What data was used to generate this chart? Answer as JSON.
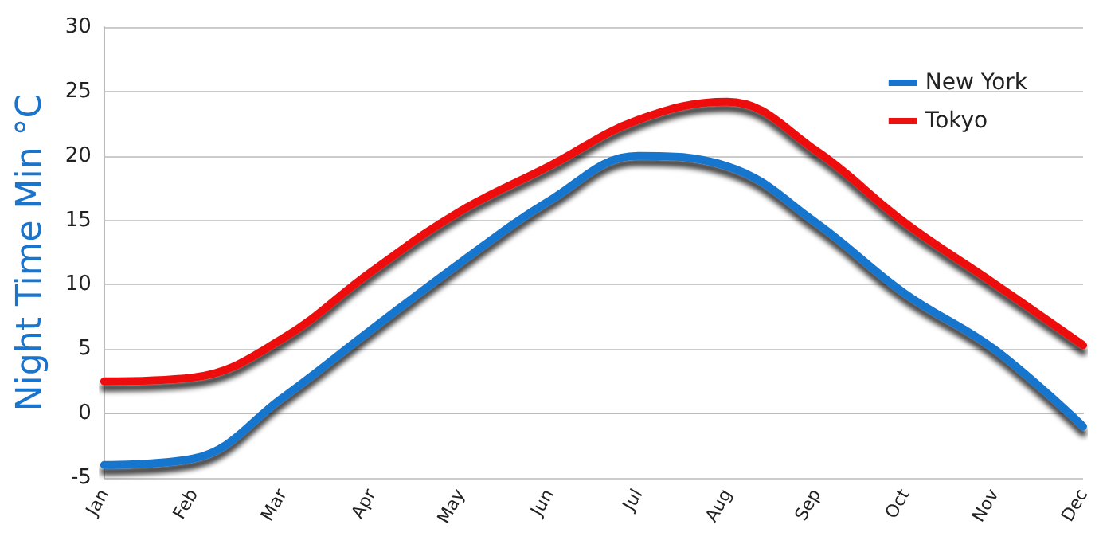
{
  "chart_data": {
    "type": "line",
    "ylabel": "Night Time Min °C",
    "categories": [
      "Jan",
      "Feb",
      "Mar",
      "Apr",
      "May",
      "Jun",
      "Jul",
      "Aug",
      "Sep",
      "Oct",
      "Nov",
      "Dec"
    ],
    "series": [
      {
        "name": "New York",
        "color": "#1874cd",
        "values": [
          -4,
          -3.5,
          1.2,
          6.5,
          11.7,
          16.5,
          20,
          19.2,
          14.8,
          9.3,
          5,
          -1
        ]
      },
      {
        "name": "Tokyo",
        "color": "#ee1111",
        "values": [
          2.5,
          2.8,
          5.8,
          11,
          15.7,
          19.2,
          22.8,
          24.2,
          20.4,
          14.8,
          10.1,
          5.3
        ]
      }
    ],
    "ylim": [
      -5,
      30
    ],
    "yticks": [
      -5,
      0,
      5,
      10,
      15,
      20,
      25,
      30
    ],
    "grid": "y",
    "legend": "top right",
    "marker": "none",
    "line_style": "solid"
  }
}
